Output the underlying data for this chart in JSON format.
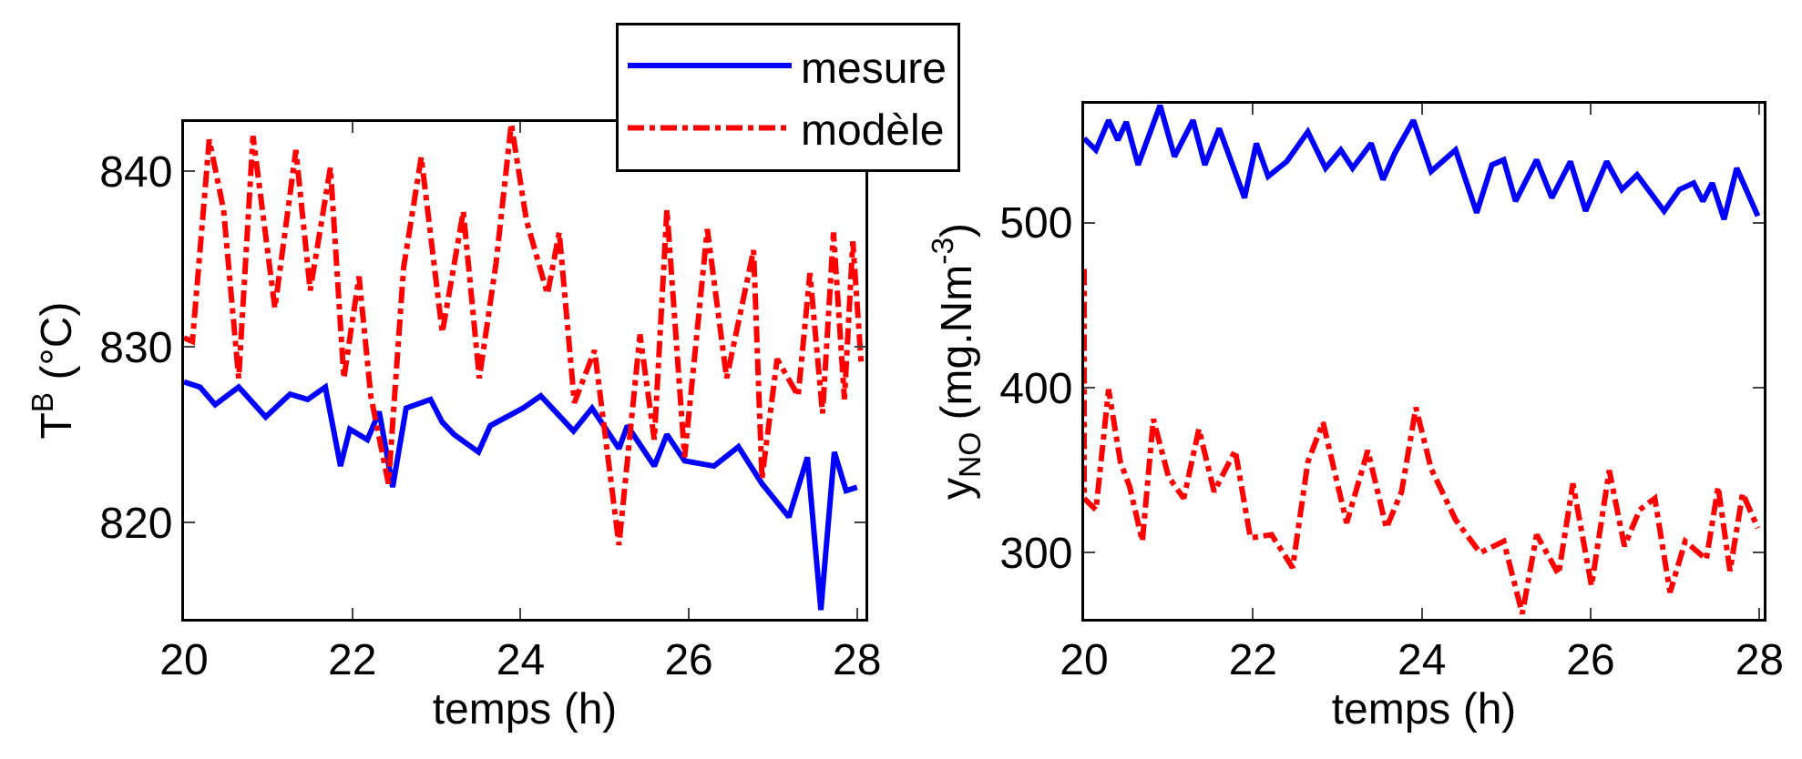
{
  "chart_data": [
    {
      "type": "line",
      "xlabel": "temps (h)",
      "ylabel": "T$^{B}$ (°C)",
      "xlim": [
        20,
        28.1
      ],
      "ylim": [
        814.5,
        842.8
      ],
      "xticks": [
        20,
        22,
        24,
        26,
        28
      ],
      "yticks": [
        820,
        830,
        840
      ],
      "grid": false,
      "legend": "top right",
      "series": [
        {
          "name": "mesure",
          "color": "#0000ff",
          "line_style": "solid",
          "x": [
            20.0,
            20.19,
            20.37,
            20.65,
            20.97,
            21.26,
            21.47,
            21.68,
            21.86,
            21.97,
            22.18,
            22.32,
            22.48,
            22.64,
            22.93,
            23.07,
            23.21,
            23.5,
            23.64,
            24.03,
            24.24,
            24.63,
            24.85,
            25.17,
            25.27,
            25.59,
            25.74,
            25.95,
            26.3,
            26.59,
            26.87,
            27.19,
            27.41,
            27.57,
            27.73,
            27.87,
            28.0
          ],
          "values": [
            828.0,
            827.7,
            826.7,
            827.7,
            826.0,
            827.3,
            827.0,
            827.7,
            823.2,
            825.3,
            824.7,
            826.3,
            822.0,
            826.5,
            827.0,
            825.7,
            825.0,
            824.0,
            825.5,
            826.5,
            827.2,
            825.2,
            826.5,
            824.2,
            825.5,
            823.2,
            825.0,
            823.5,
            823.2,
            824.3,
            822.2,
            820.3,
            823.7,
            815.0,
            824.0,
            821.8,
            822.0
          ]
        },
        {
          "name": "modèle",
          "color": "#ff0000",
          "line_style": "dashdot",
          "x": [
            20.0,
            20.1,
            20.3,
            20.47,
            20.65,
            20.82,
            21.08,
            21.33,
            21.5,
            21.74,
            21.9,
            22.08,
            22.22,
            22.43,
            22.61,
            22.82,
            23.07,
            23.32,
            23.51,
            23.71,
            23.89,
            24.07,
            24.32,
            24.46,
            24.64,
            24.88,
            25.17,
            25.42,
            25.59,
            25.74,
            25.95,
            26.22,
            26.45,
            26.77,
            26.87,
            27.05,
            27.3,
            27.44,
            27.59,
            27.72,
            27.85,
            27.95,
            28.05
          ],
          "values": [
            830.5,
            830.3,
            841.8,
            837.8,
            828.2,
            842.0,
            832.2,
            841.2,
            833.2,
            840.2,
            828.2,
            834.0,
            827.2,
            822.2,
            834.5,
            840.8,
            830.8,
            837.7,
            828.2,
            834.8,
            842.7,
            837.2,
            833.0,
            836.5,
            826.8,
            829.8,
            818.7,
            830.7,
            824.7,
            837.8,
            823.7,
            836.7,
            828.2,
            835.5,
            822.5,
            829.3,
            827.2,
            834.2,
            826.2,
            836.5,
            827.0,
            836.0,
            829.0
          ]
        }
      ]
    },
    {
      "type": "line",
      "xlabel": "temps (h)",
      "ylabel": "y$_{NO}$ (mg.Nm$^{-3}$)",
      "xlim": [
        20,
        28.05
      ],
      "ylim": [
        260,
        572
      ],
      "xticks": [
        20,
        22,
        24,
        26,
        28
      ],
      "yticks": [
        300,
        400,
        500
      ],
      "grid": false,
      "series": [
        {
          "color": "#0000ff",
          "line_style": "solid",
          "x": [
            20.0,
            20.14,
            20.29,
            20.4,
            20.5,
            20.64,
            20.9,
            21.07,
            21.29,
            21.43,
            21.6,
            21.9,
            22.04,
            22.18,
            22.4,
            22.65,
            22.86,
            23.04,
            23.18,
            23.4,
            23.54,
            23.68,
            23.9,
            24.11,
            24.4,
            24.65,
            24.83,
            24.97,
            25.11,
            25.36,
            25.54,
            25.76,
            25.94,
            26.19,
            26.37,
            26.55,
            26.87,
            27.05,
            27.22,
            27.33,
            27.44,
            27.58,
            27.73,
            27.98
          ],
          "values": [
            551,
            544,
            562,
            550,
            561,
            535,
            571,
            540,
            562,
            535,
            557,
            515,
            548,
            528,
            537,
            555,
            533,
            544,
            533,
            548,
            526,
            542,
            562,
            531,
            544,
            506,
            535,
            538,
            513,
            538,
            515,
            537,
            507,
            537,
            520,
            529,
            507,
            520,
            524,
            513,
            524,
            502,
            533,
            504
          ]
        },
        {
          "color": "#ff0000",
          "line_style": "dashdot",
          "x": [
            20.0,
            20.0,
            20.14,
            20.29,
            20.43,
            20.54,
            20.69,
            20.82,
            21.0,
            21.18,
            21.36,
            21.54,
            21.79,
            21.97,
            22.22,
            22.47,
            22.65,
            22.83,
            23.11,
            23.36,
            23.58,
            23.76,
            23.93,
            24.11,
            24.4,
            24.69,
            24.97,
            25.19,
            25.36,
            25.62,
            25.79,
            26.01,
            26.22,
            26.4,
            26.58,
            26.76,
            26.94,
            27.12,
            27.37,
            27.51,
            27.65,
            27.8,
            27.98
          ],
          "values": [
            472,
            333,
            326,
            399,
            355,
            340,
            307,
            381,
            346,
            333,
            375,
            337,
            362,
            309,
            311,
            291,
            355,
            379,
            318,
            362,
            315,
            337,
            388,
            351,
            320,
            300,
            307,
            263,
            311,
            287,
            342,
            280,
            350,
            304,
            326,
            333,
            276,
            307,
            296,
            340,
            289,
            336,
            315
          ]
        }
      ]
    }
  ]
}
